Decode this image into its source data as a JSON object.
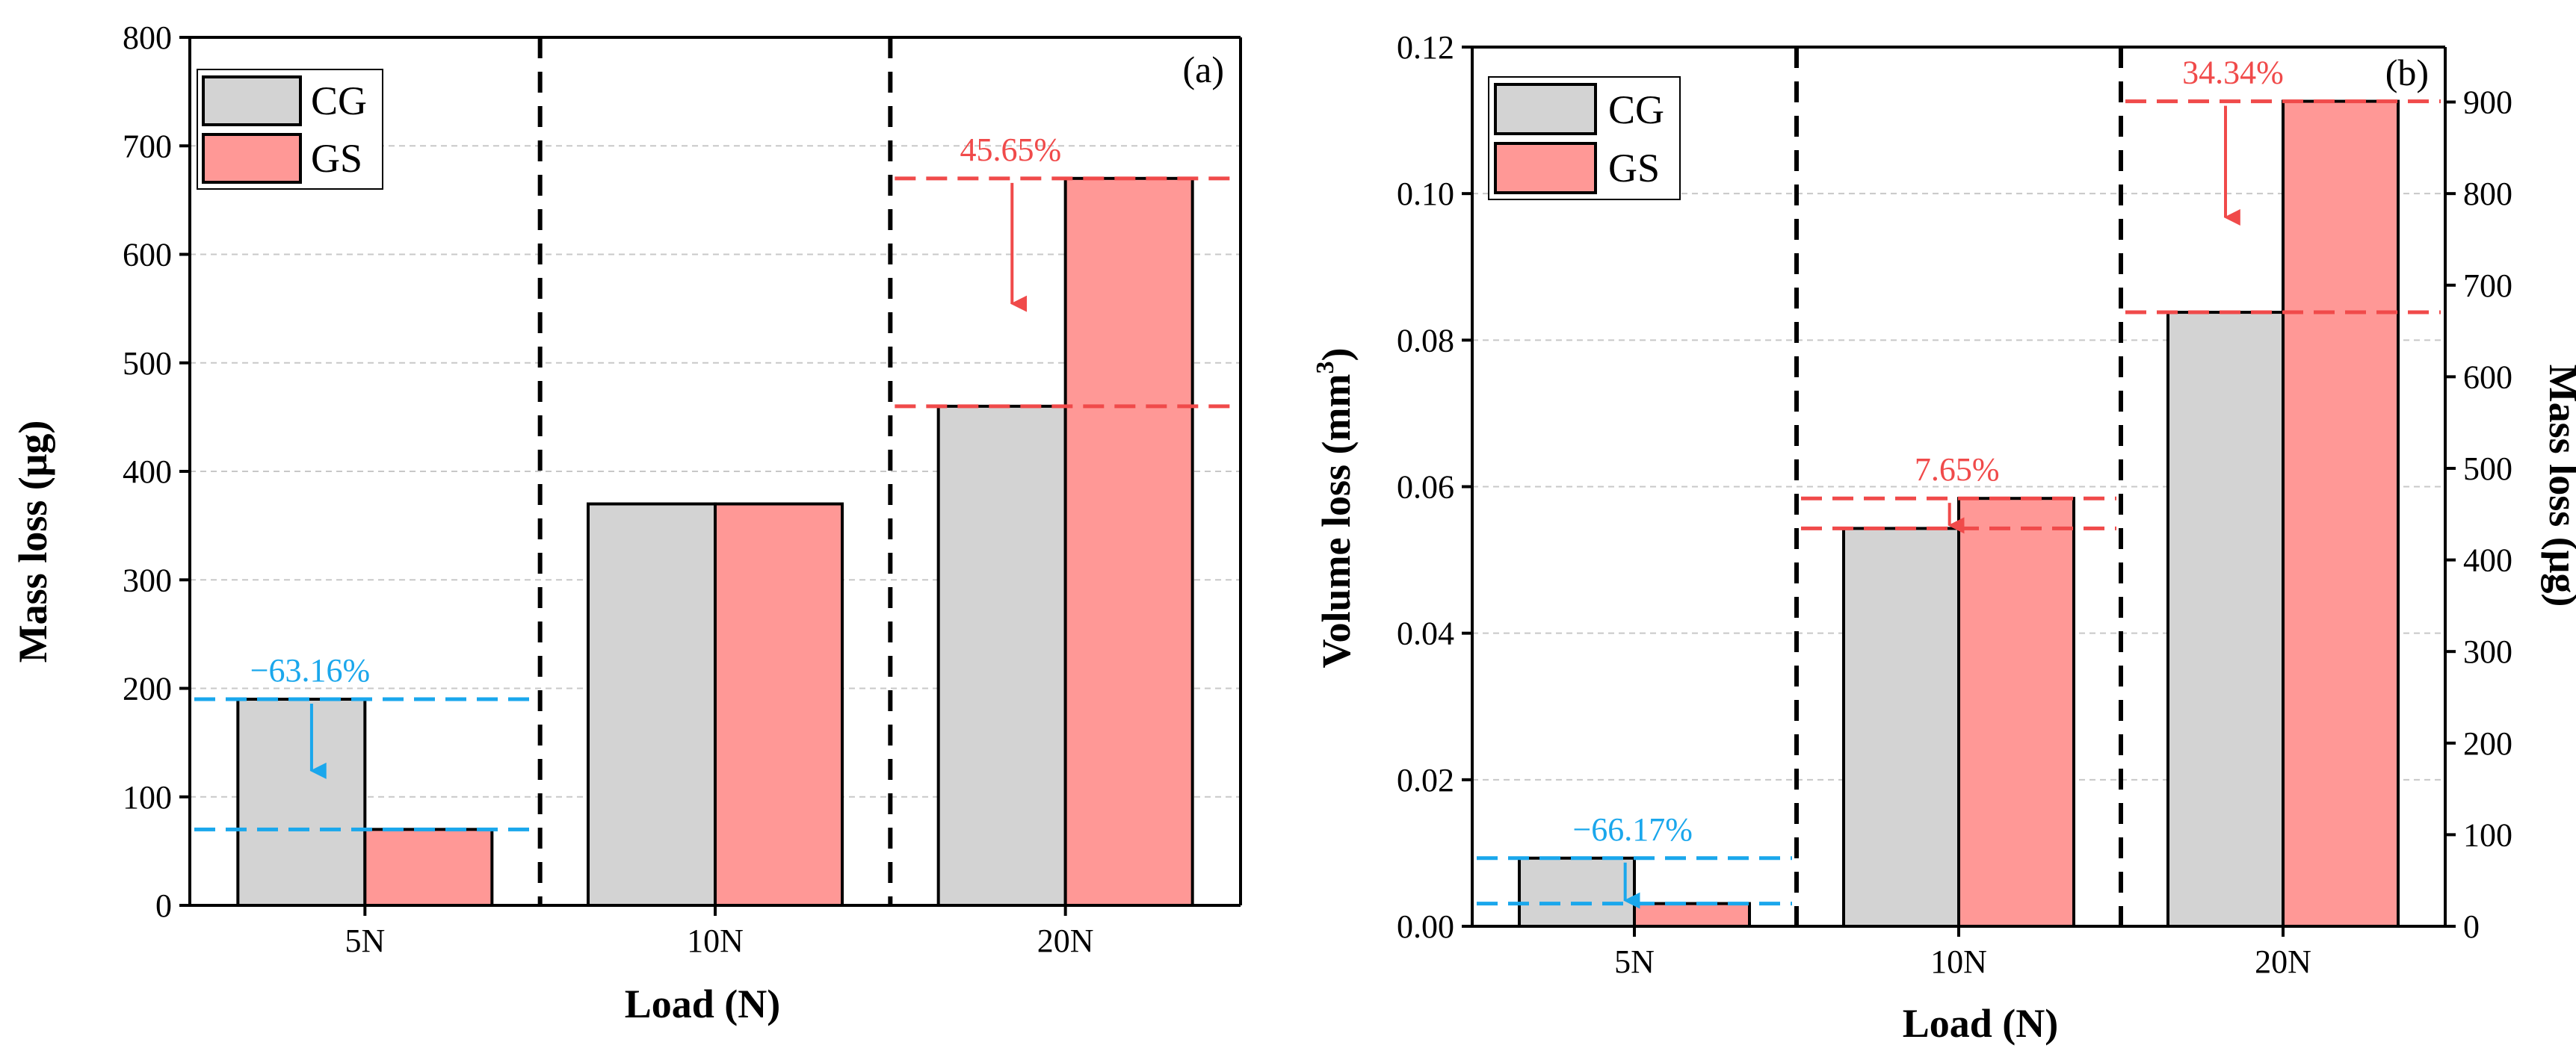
{
  "colors": {
    "cg": "#d3d3d3",
    "gs": "#ff9896",
    "blue": "#1aa7ec",
    "red": "#f04a4a"
  },
  "chart_data": [
    {
      "type": "bar",
      "panel_label": "(a)",
      "categories": [
        "5N",
        "10N",
        "20N"
      ],
      "series": [
        {
          "name": "CG",
          "values": [
            190,
            370,
            460
          ]
        },
        {
          "name": "GS",
          "values": [
            70,
            370,
            670
          ]
        }
      ],
      "xlabel": "Load (N)",
      "ylabel": "Mass loss (μg)",
      "ylim": [
        0,
        800
      ],
      "yticks": [
        0,
        100,
        200,
        300,
        400,
        500,
        600,
        700,
        800
      ],
      "grid": true,
      "legend": "top-left",
      "annotations": [
        {
          "category": "5N",
          "text": "−63.16%",
          "from": 190,
          "to": 70,
          "color": "blue"
        },
        {
          "category": "20N",
          "text": "45.65%",
          "from": 670,
          "to": 460,
          "color": "red"
        }
      ]
    },
    {
      "type": "bar",
      "panel_label": "(b)",
      "categories": [
        "5N",
        "10N",
        "20N"
      ],
      "series": [
        {
          "name": "CG",
          "values": [
            0.0093,
            0.0543,
            0.0838
          ]
        },
        {
          "name": "GS",
          "values": [
            0.0031,
            0.0584,
            0.1126
          ]
        }
      ],
      "xlabel": "Load (N)",
      "ylabel": "Volume loss (mm",
      "ylabel_sup": "3",
      "ylabel_close": ")",
      "ylim": [
        0,
        0.12
      ],
      "yticks": [
        "0.00",
        "0.02",
        "0.04",
        "0.06",
        "0.08",
        "0.10",
        "0.12"
      ],
      "y2label": "Mass loss (μg)",
      "y2lim": [
        0,
        960
      ],
      "y2ticks": [
        0,
        100,
        200,
        300,
        400,
        500,
        600,
        700,
        800,
        900
      ],
      "grid": true,
      "legend": "top-left",
      "annotations": [
        {
          "category": "5N",
          "text": "−66.17%",
          "from": 0.0093,
          "to": 0.0031,
          "color": "blue"
        },
        {
          "category": "10N",
          "text": "7.65%",
          "from": 0.0584,
          "to": 0.0543,
          "color": "red"
        },
        {
          "category": "20N",
          "text": "34.34%",
          "from": 0.1126,
          "to": 0.0838,
          "color": "red"
        }
      ]
    }
  ]
}
